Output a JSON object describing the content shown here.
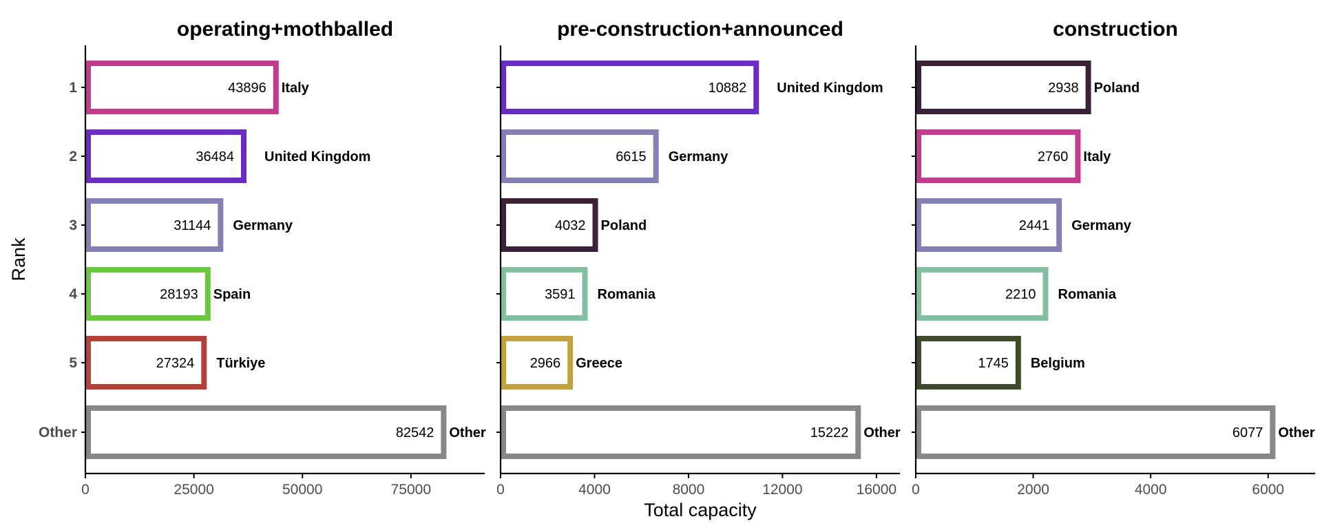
{
  "chart_data": {
    "type": "bar",
    "orientation": "horizontal",
    "ylabel": "Rank",
    "xlabel": "Total capacity",
    "rank_labels": [
      "1",
      "2",
      "3",
      "4",
      "5",
      "Other"
    ],
    "panels": [
      {
        "title": "operating+mothballed",
        "xlim": [
          0,
          92000
        ],
        "xticks": [
          0,
          25000,
          50000,
          75000
        ],
        "bars": [
          {
            "rank": "1",
            "country": "Italy",
            "value": 43896,
            "color": "#c23b8e"
          },
          {
            "rank": "2",
            "country": "United Kingdom",
            "value": 36484,
            "color": "#6a2cc4"
          },
          {
            "rank": "3",
            "country": "Germany",
            "value": 31144,
            "color": "#8480b6"
          },
          {
            "rank": "4",
            "country": "Spain",
            "value": 28193,
            "color": "#6cc93e"
          },
          {
            "rank": "5",
            "country": "Türkiye",
            "value": 27324,
            "color": "#b5423a"
          },
          {
            "rank": "Other",
            "country": "Other",
            "value": 82542,
            "color": "#888888"
          }
        ]
      },
      {
        "title": "pre-construction+announced",
        "xlim": [
          0,
          17000
        ],
        "xticks": [
          0,
          4000,
          8000,
          12000,
          16000
        ],
        "bars": [
          {
            "rank": "1",
            "country": "United Kingdom",
            "value": 10882,
            "color": "#6a2cc4"
          },
          {
            "rank": "2",
            "country": "Germany",
            "value": 6615,
            "color": "#8480b6"
          },
          {
            "rank": "3",
            "country": "Poland",
            "value": 4032,
            "color": "#3b2236"
          },
          {
            "rank": "4",
            "country": "Romania",
            "value": 3591,
            "color": "#83c0a2"
          },
          {
            "rank": "5",
            "country": "Greece",
            "value": 2966,
            "color": "#c0a23e"
          },
          {
            "rank": "Other",
            "country": "Other",
            "value": 15222,
            "color": "#888888"
          }
        ]
      },
      {
        "title": "construction",
        "xlim": [
          0,
          6800
        ],
        "xticks": [
          0,
          2000,
          4000,
          6000
        ],
        "bars": [
          {
            "rank": "1",
            "country": "Poland",
            "value": 2938,
            "color": "#3b2236"
          },
          {
            "rank": "2",
            "country": "Italy",
            "value": 2760,
            "color": "#c23b8e"
          },
          {
            "rank": "3",
            "country": "Germany",
            "value": 2441,
            "color": "#8480b6"
          },
          {
            "rank": "4",
            "country": "Romania",
            "value": 2210,
            "color": "#83c0a2"
          },
          {
            "rank": "5",
            "country": "Belgium",
            "value": 1745,
            "color": "#3e4a2b"
          },
          {
            "rank": "Other",
            "country": "Other",
            "value": 6077,
            "color": "#888888"
          }
        ]
      }
    ]
  }
}
